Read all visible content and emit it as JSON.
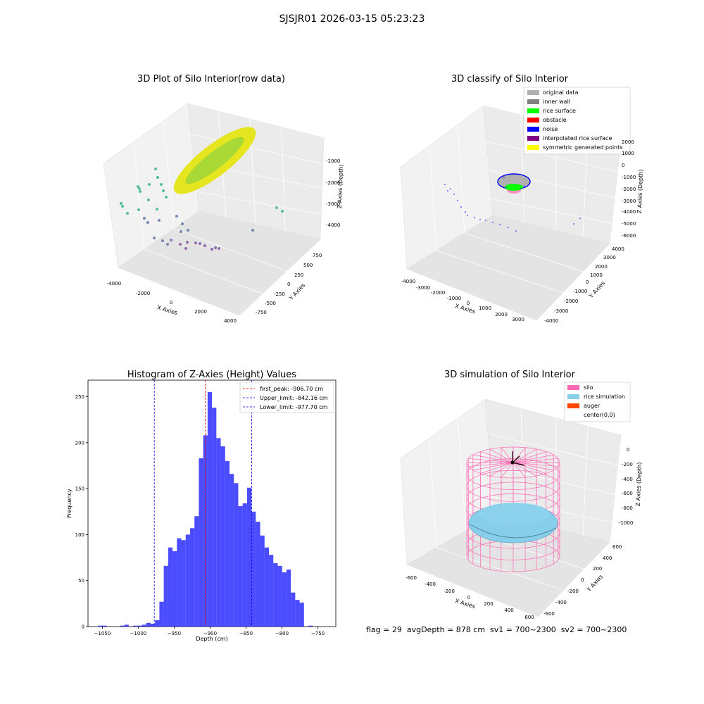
{
  "suptitle": "SJSJR01 2026-03-15 05:23:23",
  "footer": "flag = 29  avgDepth = 878 cm  sv1 = 700~2300  sv2 = 700~2300",
  "panels": {
    "raw": {
      "title": "3D Plot of Silo Interior(row data)",
      "xlabel": "X Axies",
      "ylabel": "Y Axies",
      "zlabel": "Z Axies (Depth)",
      "xticks": [
        "-4000",
        "-2000",
        "0",
        "2000",
        "4000"
      ],
      "yticks": [
        "-750",
        "-500",
        "-250",
        "0",
        "250",
        "500",
        "750"
      ],
      "zticks": [
        "-1000",
        "-2000",
        "-3000",
        "-4000"
      ]
    },
    "classify": {
      "title": "3D classify of Silo Interior",
      "xlabel": "X Axies",
      "ylabel": "Y Axies",
      "zlabel": "Z Axies (Depth)",
      "xticks": [
        "-4000",
        "-3000",
        "-2000",
        "-1000",
        "0",
        "1000",
        "2000",
        "3000"
      ],
      "yticks": [
        "-4000",
        "-3000",
        "-2000",
        "-1000",
        "0",
        "1000",
        "2000",
        "3000",
        "4000"
      ],
      "zticks": [
        "2000",
        "1000",
        "0",
        "-1000",
        "-2000",
        "-3000",
        "-4000",
        "-5000",
        "-6000"
      ],
      "legend": [
        {
          "label": "original data",
          "color": "#b0b0b0"
        },
        {
          "label": "inner wall",
          "color": "#808080"
        },
        {
          "label": "rice surface",
          "color": "#00ff00"
        },
        {
          "label": "obstacle",
          "color": "#ff0000"
        },
        {
          "label": "noise",
          "color": "#0000ff"
        },
        {
          "label": "interpolated rice surface",
          "color": "#800080"
        },
        {
          "label": "symmetric generated points",
          "color": "#ffff00"
        }
      ]
    },
    "simulation": {
      "title": "3D simulation of Silo Interior",
      "xlabel": "X Axies",
      "ylabel": "Y Axies",
      "zlabel": "Z Axies (Depth)",
      "xticks": [
        "-600",
        "-400",
        "-200",
        "0",
        "200",
        "400",
        "600"
      ],
      "yticks": [
        "-600",
        "-400",
        "-200",
        "0",
        "200",
        "400",
        "600"
      ],
      "zticks": [
        "0",
        "-200",
        "-400",
        "-600",
        "-800",
        "-1000"
      ],
      "legend": [
        {
          "label": "silo",
          "color": "#ff69b4"
        },
        {
          "label": "rice simulation",
          "color": "#87ceeb"
        },
        {
          "label": "auger",
          "color": "#ff4500"
        },
        {
          "label": "center(0,0)",
          "color": ""
        }
      ]
    }
  },
  "chart_data": {
    "type": "bar",
    "title": "Histogram of Z-Axies (Height) Values",
    "xlabel": "Depth (cm)",
    "ylabel": "Frequency",
    "xlim": [
      -1070,
      -725
    ],
    "ylim": [
      0,
      268
    ],
    "xticks": [
      -1050,
      -1000,
      -950,
      -900,
      -850,
      -800,
      -750
    ],
    "yticks": [
      0,
      50,
      100,
      150,
      200,
      250
    ],
    "bar_color": "#0000ff",
    "bin_start": -1056,
    "bin_width": 6.1,
    "counts": [
      1,
      1,
      0,
      0,
      0,
      1,
      2,
      0,
      1,
      1,
      2,
      4,
      3,
      7,
      27,
      66,
      86,
      82,
      96,
      94,
      100,
      107,
      120,
      183,
      208,
      255,
      238,
      205,
      196,
      180,
      166,
      156,
      131,
      134,
      151,
      125,
      114,
      99,
      86,
      78,
      69,
      66,
      59,
      62,
      37,
      29,
      26,
      0,
      1
    ],
    "vlines": [
      {
        "label": "first_peak: -906.70 cm",
        "x": -906.7,
        "color": "#ff0000"
      },
      {
        "label": "Upper_limit: -842.16 cm",
        "x": -842.16,
        "color": "#0000ff"
      },
      {
        "label": "Lower_limit: -977.70 cm",
        "x": -977.7,
        "color": "#0000ff"
      }
    ]
  }
}
